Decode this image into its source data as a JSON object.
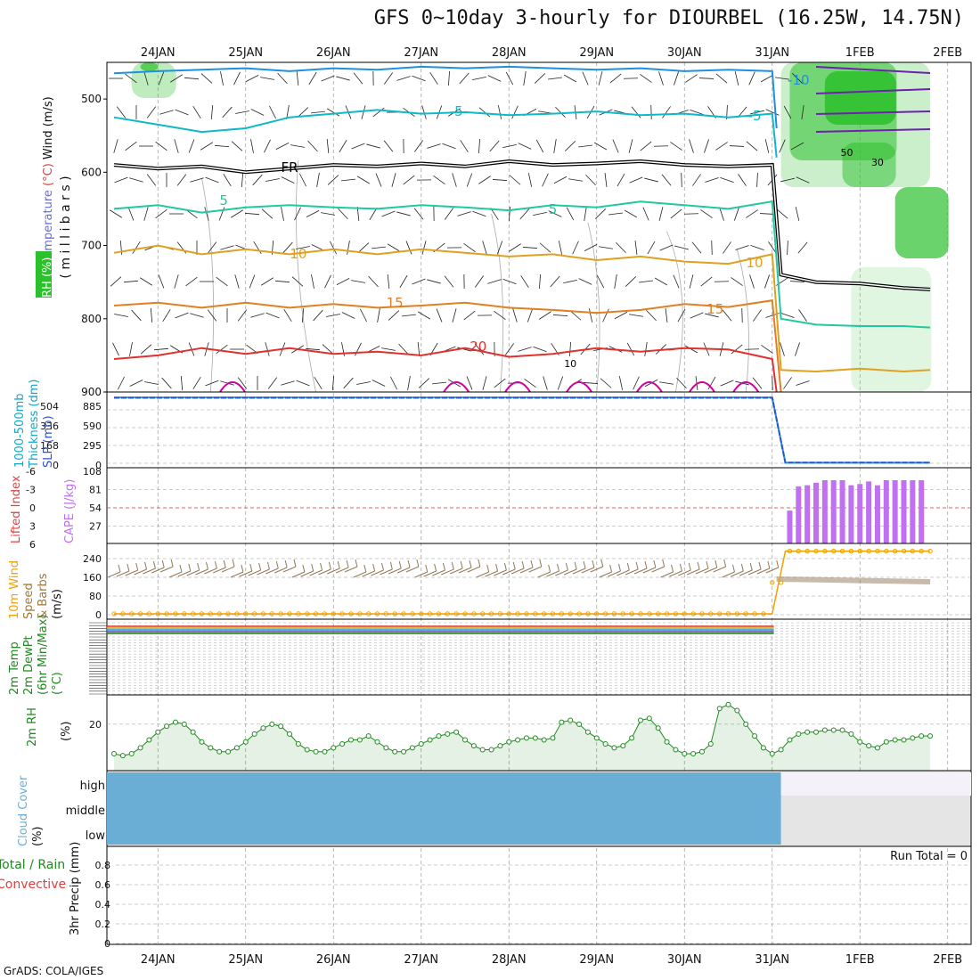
{
  "title": "GFS 0~10day 3-hourly for DIOURBEL (16.25W, 14.75N)",
  "credit": "GrADS: COLA/IGES",
  "dates": [
    "24JAN",
    "25JAN",
    "26JAN",
    "27JAN",
    "28JAN",
    "29JAN",
    "30JAN",
    "31JAN",
    "1FEB",
    "2FEB"
  ],
  "colors": {
    "temp_minus10": "#1e90e0",
    "temp_minus5": "#10b8c8",
    "freezing": "#000000",
    "temp_5": "#20c8a0",
    "temp_10": "#e0a020",
    "temp_15": "#e08020",
    "temp_20": "#e03030",
    "temp_25": "#d000a0",
    "rh_fill": "#2cc02c",
    "cape": "#c070f0",
    "wind_speed": "#f0a000",
    "barbs": "#907858",
    "rh2m": "#208820",
    "cloud": "#6aaed6",
    "thickness": "#10a8c8",
    "slp": "#3050d0"
  },
  "chart_data": [
    {
      "type": "line",
      "panel": "upper-air",
      "title": "",
      "ylabel_parts": [
        "RH (%)",
        "Temperature",
        "(°C)",
        "Wind (m/s)"
      ],
      "ylabel_units": "( m i l l i b a r s )",
      "y_ticks": [
        500,
        600,
        700,
        800,
        900
      ],
      "ylim": [
        450,
        900
      ],
      "contour_labels": [
        "-10",
        "-5",
        "-5",
        "FR",
        "5",
        "5",
        "10",
        "10",
        "15",
        "15",
        "20",
        "10",
        "30",
        "50"
      ],
      "series": [
        {
          "name": "-10",
          "color_key": "temp_minus10",
          "points": [
            [
              0,
              465
            ],
            [
              0.5,
              462
            ],
            [
              1.0,
              460
            ],
            [
              1.5,
              458
            ],
            [
              2.0,
              462
            ],
            [
              2.5,
              458
            ],
            [
              3.0,
              460
            ],
            [
              3.5,
              456
            ],
            [
              4.0,
              458
            ],
            [
              4.5,
              456
            ],
            [
              5.0,
              458
            ],
            [
              5.5,
              460
            ],
            [
              6.0,
              458
            ],
            [
              6.5,
              462
            ],
            [
              7.0,
              460
            ],
            [
              7.5,
              462
            ],
            [
              7.55,
              540
            ]
          ]
        },
        {
          "name": "-5",
          "color_key": "temp_minus5",
          "points": [
            [
              0,
              525
            ],
            [
              0.5,
              535
            ],
            [
              1.0,
              545
            ],
            [
              1.5,
              540
            ],
            [
              2.0,
              525
            ],
            [
              2.5,
              520
            ],
            [
              3.0,
              515
            ],
            [
              3.5,
              520
            ],
            [
              4.0,
              518
            ],
            [
              4.5,
              522
            ],
            [
              5.0,
              520
            ],
            [
              5.5,
              517
            ],
            [
              6.0,
              522
            ],
            [
              6.5,
              520
            ],
            [
              7.0,
              525
            ],
            [
              7.5,
              520
            ],
            [
              7.55,
              580
            ]
          ]
        },
        {
          "name": "FR",
          "color_key": "freezing",
          "points": [
            [
              0,
              590
            ],
            [
              0.5,
              595
            ],
            [
              1.0,
              592
            ],
            [
              1.5,
              600
            ],
            [
              2.0,
              595
            ],
            [
              2.5,
              590
            ],
            [
              3.0,
              592
            ],
            [
              3.5,
              588
            ],
            [
              4.0,
              592
            ],
            [
              4.5,
              585
            ],
            [
              5.0,
              590
            ],
            [
              5.5,
              588
            ],
            [
              6.0,
              585
            ],
            [
              6.5,
              590
            ],
            [
              7.0,
              592
            ],
            [
              7.5,
              590
            ],
            [
              7.6,
              740
            ],
            [
              8.0,
              750
            ],
            [
              8.5,
              752
            ],
            [
              9.0,
              758
            ],
            [
              9.3,
              760
            ]
          ]
        },
        {
          "name": "5",
          "color_key": "temp_5",
          "points": [
            [
              0,
              650
            ],
            [
              0.5,
              645
            ],
            [
              1.0,
              655
            ],
            [
              1.5,
              648
            ],
            [
              2.0,
              645
            ],
            [
              2.5,
              648
            ],
            [
              3.0,
              650
            ],
            [
              3.5,
              645
            ],
            [
              4.0,
              648
            ],
            [
              4.5,
              652
            ],
            [
              5.0,
              645
            ],
            [
              5.5,
              648
            ],
            [
              6.0,
              640
            ],
            [
              6.5,
              645
            ],
            [
              7.0,
              650
            ],
            [
              7.5,
              640
            ],
            [
              7.6,
              800
            ],
            [
              8.0,
              808
            ],
            [
              8.5,
              810
            ],
            [
              9.0,
              810
            ],
            [
              9.3,
              812
            ]
          ]
        },
        {
          "name": "10",
          "color_key": "temp_10",
          "points": [
            [
              0,
              710
            ],
            [
              0.5,
              700
            ],
            [
              1.0,
              712
            ],
            [
              1.5,
              705
            ],
            [
              2.0,
              712
            ],
            [
              2.5,
              705
            ],
            [
              3.0,
              712
            ],
            [
              3.5,
              705
            ],
            [
              4.0,
              710
            ],
            [
              4.5,
              715
            ],
            [
              5.0,
              712
            ],
            [
              5.5,
              720
            ],
            [
              6.0,
              715
            ],
            [
              6.5,
              722
            ],
            [
              7.0,
              725
            ],
            [
              7.5,
              712
            ],
            [
              7.6,
              870
            ],
            [
              8.0,
              872
            ],
            [
              8.5,
              868
            ],
            [
              9.0,
              872
            ],
            [
              9.3,
              870
            ]
          ]
        },
        {
          "name": "15",
          "color_key": "temp_15",
          "points": [
            [
              0,
              782
            ],
            [
              0.5,
              778
            ],
            [
              1.0,
              785
            ],
            [
              1.5,
              778
            ],
            [
              2.0,
              785
            ],
            [
              2.5,
              780
            ],
            [
              3.0,
              785
            ],
            [
              3.5,
              782
            ],
            [
              4.0,
              778
            ],
            [
              4.5,
              785
            ],
            [
              5.0,
              788
            ],
            [
              5.5,
              792
            ],
            [
              6.0,
              788
            ],
            [
              6.5,
              780
            ],
            [
              7.0,
              784
            ],
            [
              7.5,
              775
            ],
            [
              7.6,
              900
            ]
          ]
        },
        {
          "name": "20",
          "color_key": "temp_20",
          "points": [
            [
              0,
              855
            ],
            [
              0.5,
              850
            ],
            [
              1.0,
              840
            ],
            [
              1.5,
              848
            ],
            [
              2.0,
              840
            ],
            [
              2.5,
              848
            ],
            [
              3.0,
              845
            ],
            [
              3.5,
              850
            ],
            [
              4.0,
              840
            ],
            [
              4.5,
              852
            ],
            [
              5.0,
              848
            ],
            [
              5.5,
              840
            ],
            [
              6.0,
              845
            ],
            [
              6.5,
              840
            ],
            [
              7.0,
              842
            ],
            [
              7.5,
              855
            ],
            [
              7.55,
              900
            ]
          ]
        }
      ]
    },
    {
      "type": "line",
      "panel": "thickness-slp",
      "ylabel": [
        "1000-500mb",
        "Thickness (dm)",
        "SLP (mb)"
      ],
      "y_ticks_left": [
        "504",
        "336",
        "168",
        "0"
      ],
      "y_ticks_right": [
        "885",
        "590",
        "295",
        "0"
      ],
      "series": [
        {
          "name": "Thickness",
          "x": [
            0,
            7.5,
            7.65,
            9.3
          ],
          "values": [
            985,
            985,
            8,
            8
          ]
        },
        {
          "name": "SLP",
          "x": [
            0,
            7.5,
            7.65,
            9.3
          ],
          "values": [
            980,
            980,
            10,
            10
          ]
        }
      ]
    },
    {
      "type": "bar",
      "panel": "cape-li",
      "ylabel": [
        "Lifted Index",
        "CAPE (J/kg)"
      ],
      "y_ticks_left": [
        "-6",
        "-3",
        "0",
        "3",
        "6"
      ],
      "y_ticks_right": [
        "108",
        "81",
        "54",
        "27"
      ],
      "x": [
        7.7,
        7.8,
        7.9,
        8.0,
        8.1,
        8.2,
        8.3,
        8.4,
        8.5,
        8.6,
        8.7,
        8.8,
        8.9,
        9.0,
        9.1,
        9.2
      ],
      "values": [
        52,
        90,
        92,
        96,
        100,
        100,
        100,
        92,
        94,
        98,
        92,
        100,
        100,
        100,
        100,
        100
      ]
    },
    {
      "type": "line",
      "panel": "wind10m",
      "ylabel": [
        "10m Wind",
        "Speed",
        "& Barbs",
        "(m/s)"
      ],
      "y_ticks": [
        "240",
        "160",
        "80",
        "0"
      ],
      "series": [
        {
          "name": "Speed",
          "x": [
            0,
            7.5,
            7.65,
            9.3
          ],
          "values": [
            0,
            0,
            270,
            270
          ]
        }
      ]
    },
    {
      "type": "line",
      "panel": "temp2m",
      "ylabel": [
        "2m Temp",
        "2m DewPt",
        "(6hr Min/Max)",
        "(°C)"
      ]
    },
    {
      "type": "area",
      "panel": "rh2m",
      "ylabel": [
        "2m RH",
        "(%)"
      ],
      "y_ticks": [
        "20"
      ],
      "x": [
        0,
        0.1,
        0.2,
        0.3,
        0.4,
        0.5,
        0.6,
        0.7,
        0.8,
        0.9,
        1.0,
        1.1,
        1.2,
        1.3,
        1.4,
        1.5,
        1.6,
        1.7,
        1.8,
        1.9,
        2.0,
        2.1,
        2.2,
        2.3,
        2.4,
        2.5,
        2.6,
        2.7,
        2.8,
        2.9,
        3.0,
        3.1,
        3.2,
        3.3,
        3.4,
        3.5,
        3.6,
        3.7,
        3.8,
        3.9,
        4.0,
        4.1,
        4.2,
        4.3,
        4.4,
        4.5,
        4.6,
        4.7,
        4.8,
        4.9,
        5.0,
        5.1,
        5.2,
        5.3,
        5.4,
        5.5,
        5.6,
        5.7,
        5.8,
        5.9,
        6.0,
        6.1,
        6.2,
        6.3,
        6.4,
        6.5,
        6.6,
        6.7,
        6.8,
        6.9,
        7.0,
        7.1,
        7.2,
        7.3,
        7.4,
        7.5,
        7.6,
        7.7,
        7.8,
        7.9,
        8.0,
        8.1,
        8.2,
        8.3,
        8.4,
        8.5,
        8.6,
        8.7,
        8.8,
        8.9,
        9.0,
        9.1,
        9.2,
        9.3
      ],
      "values": [
        5,
        4,
        5,
        8,
        12,
        16,
        19,
        21,
        20,
        16,
        11,
        8,
        6,
        6,
        8,
        11,
        15,
        18,
        20,
        19,
        15,
        10,
        7,
        6,
        6,
        8,
        10,
        12,
        12,
        14,
        11,
        8,
        6,
        6,
        8,
        10,
        12,
        14,
        15,
        16,
        12,
        9,
        7,
        7,
        9,
        11,
        12,
        13,
        13,
        12,
        13,
        21,
        22,
        20,
        16,
        13,
        10,
        8,
        9,
        13,
        22,
        23,
        18,
        11,
        7,
        5,
        5,
        6,
        10,
        28,
        30,
        27,
        20,
        14,
        8,
        5,
        7,
        12,
        15,
        16,
        16,
        17,
        17,
        17,
        15,
        11,
        9,
        8,
        11,
        12,
        12,
        13,
        14,
        14
      ]
    },
    {
      "type": "bar",
      "panel": "cloud-cover",
      "ylabel": [
        "Cloud Cover",
        "(%)"
      ],
      "levels": [
        "high",
        "middle",
        "low"
      ]
    },
    {
      "type": "bar",
      "panel": "precip",
      "ylabel": [
        "Total / Rain",
        "Convective",
        "3hr Precip (mm)"
      ],
      "y_ticks": [
        "0.8",
        "0.6",
        "0.4",
        "0.2",
        "0"
      ],
      "run_total": "Run Total = 0",
      "values": []
    }
  ]
}
